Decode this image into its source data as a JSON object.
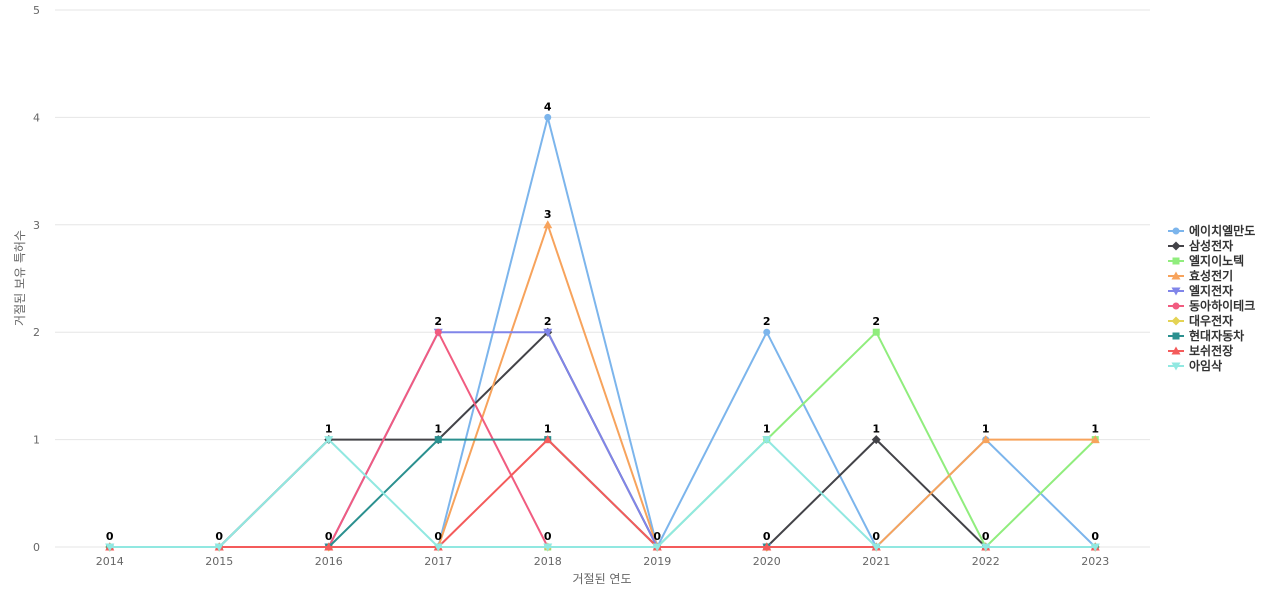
{
  "chart_data": {
    "type": "line",
    "title": "",
    "xlabel": "거절된 연도",
    "ylabel": "거절된 보유 특허수",
    "categories": [
      "2014",
      "2015",
      "2016",
      "2017",
      "2018",
      "2019",
      "2020",
      "2021",
      "2022",
      "2023"
    ],
    "yticks": [
      "0",
      "1",
      "2",
      "3",
      "4",
      "5"
    ],
    "ylim": [
      0,
      5
    ],
    "grid": true,
    "legend_position": "right",
    "series": [
      {
        "name": "에이치엘만도",
        "color": "#7cb5ec",
        "marker": "circle",
        "values": [
          0,
          0,
          0,
          0,
          4,
          0,
          2,
          0,
          1,
          0
        ]
      },
      {
        "name": "삼성전자",
        "color": "#434348",
        "marker": "diamond",
        "values": [
          0,
          0,
          1,
          1,
          2,
          0,
          0,
          1,
          0,
          0
        ]
      },
      {
        "name": "엘지이노텍",
        "color": "#90ed7d",
        "marker": "square",
        "values": [
          0,
          0,
          0,
          0,
          0,
          0,
          1,
          2,
          0,
          1
        ]
      },
      {
        "name": "효성전기",
        "color": "#f7a35c",
        "marker": "triangle",
        "values": [
          0,
          0,
          0,
          0,
          3,
          0,
          0,
          0,
          1,
          1
        ]
      },
      {
        "name": "엘지전자",
        "color": "#8085e9",
        "marker": "triangle-down",
        "values": [
          0,
          0,
          0,
          2,
          2,
          0,
          0,
          0,
          0,
          0
        ]
      },
      {
        "name": "동아하이테크",
        "color": "#f15c80",
        "marker": "circle",
        "values": [
          0,
          0,
          0,
          2,
          0,
          0,
          0,
          0,
          0,
          0
        ]
      },
      {
        "name": "대우전자",
        "color": "#e4d354",
        "marker": "diamond",
        "values": [
          0,
          0,
          0,
          0,
          0,
          0,
          0,
          0,
          0,
          0
        ]
      },
      {
        "name": "현대자동차",
        "color": "#2b908f",
        "marker": "square",
        "values": [
          0,
          0,
          0,
          1,
          1,
          0,
          0,
          0,
          0,
          0
        ]
      },
      {
        "name": "보쉬전장",
        "color": "#f45b5b",
        "marker": "triangle",
        "values": [
          0,
          0,
          0,
          0,
          1,
          0,
          0,
          0,
          0,
          0
        ]
      },
      {
        "name": "아임삭",
        "color": "#91e8e1",
        "marker": "triangle-down",
        "values": [
          0,
          0,
          1,
          0,
          0,
          0,
          1,
          0,
          0,
          0
        ]
      }
    ],
    "data_labels": [
      {
        "category": "2014",
        "text": "0",
        "y": 0
      },
      {
        "category": "2015",
        "text": "0",
        "y": 0
      },
      {
        "category": "2016",
        "text": "1",
        "y": 1
      },
      {
        "category": "2016",
        "text": "0",
        "y": 0
      },
      {
        "category": "2017",
        "text": "2",
        "y": 2
      },
      {
        "category": "2017",
        "text": "1",
        "y": 1
      },
      {
        "category": "2017",
        "text": "0",
        "y": 0
      },
      {
        "category": "2018",
        "text": "4",
        "y": 4
      },
      {
        "category": "2018",
        "text": "3",
        "y": 3
      },
      {
        "category": "2018",
        "text": "2",
        "y": 2
      },
      {
        "category": "2018",
        "text": "1",
        "y": 1
      },
      {
        "category": "2018",
        "text": "0",
        "y": 0
      },
      {
        "category": "2019",
        "text": "0",
        "y": 0
      },
      {
        "category": "2020",
        "text": "2",
        "y": 2
      },
      {
        "category": "2020",
        "text": "1",
        "y": 1
      },
      {
        "category": "2020",
        "text": "0",
        "y": 0
      },
      {
        "category": "2021",
        "text": "2",
        "y": 2
      },
      {
        "category": "2021",
        "text": "1",
        "y": 1
      },
      {
        "category": "2021",
        "text": "0",
        "y": 0
      },
      {
        "category": "2022",
        "text": "1",
        "y": 1
      },
      {
        "category": "2022",
        "text": "0",
        "y": 0
      },
      {
        "category": "2023",
        "text": "1",
        "y": 1
      },
      {
        "category": "2023",
        "text": "0",
        "y": 0
      }
    ]
  }
}
